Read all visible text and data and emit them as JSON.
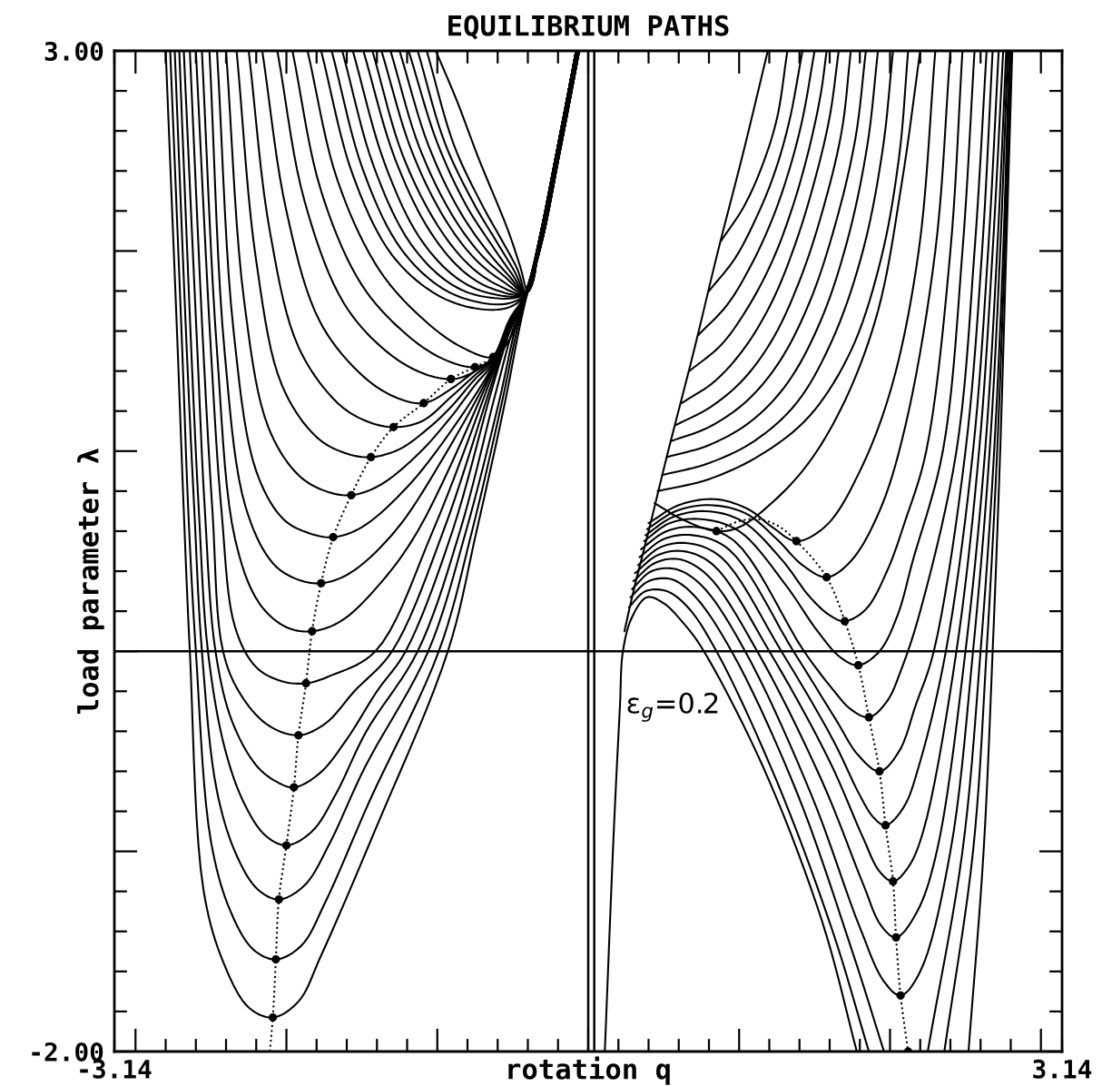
{
  "chart_data": {
    "type": "line",
    "title": "EQUILIBRIUM PATHS",
    "xlabel": "rotation q",
    "ylabel": "load parameter λ",
    "color": "#000000",
    "line_style": "solid",
    "xlim": [
      -3.14,
      3.14
    ],
    "ylim": [
      -2.0,
      3.0
    ],
    "xticks": [
      {
        "value": -3.14,
        "label": "-3.14"
      },
      {
        "value": -3.0,
        "label": null
      },
      {
        "value": -2.8,
        "label": null
      },
      {
        "value": -2.6,
        "label": null
      },
      {
        "value": -2.4,
        "label": null
      },
      {
        "value": -2.2,
        "label": null
      },
      {
        "value": -2.0,
        "label": null
      },
      {
        "value": -1.8,
        "label": null
      },
      {
        "value": -1.6,
        "label": null
      },
      {
        "value": -1.4,
        "label": null
      },
      {
        "value": -1.2,
        "label": null
      },
      {
        "value": -1.0,
        "label": null
      },
      {
        "value": -0.8,
        "label": null
      },
      {
        "value": -0.6,
        "label": null
      },
      {
        "value": -0.4,
        "label": null
      },
      {
        "value": -0.2,
        "label": null
      },
      {
        "value": 0.0,
        "label": null
      },
      {
        "value": 0.2,
        "label": null
      },
      {
        "value": 0.4,
        "label": null
      },
      {
        "value": 0.6,
        "label": null
      },
      {
        "value": 0.8,
        "label": null
      },
      {
        "value": 1.0,
        "label": null
      },
      {
        "value": 1.2,
        "label": null
      },
      {
        "value": 1.4,
        "label": null
      },
      {
        "value": 1.6,
        "label": null
      },
      {
        "value": 1.8,
        "label": null
      },
      {
        "value": 2.0,
        "label": null
      },
      {
        "value": 2.2,
        "label": null
      },
      {
        "value": 2.4,
        "label": null
      },
      {
        "value": 2.6,
        "label": null
      },
      {
        "value": 2.8,
        "label": null
      },
      {
        "value": 3.0,
        "label": null
      },
      {
        "value": 3.14,
        "label": "3.14"
      }
    ],
    "yticks": [
      {
        "value": -2.0,
        "label": "-2.00"
      },
      {
        "value": -1.8,
        "label": null
      },
      {
        "value": -1.6,
        "label": null
      },
      {
        "value": -1.4,
        "label": null
      },
      {
        "value": -1.2,
        "label": null
      },
      {
        "value": -1.0,
        "label": null
      },
      {
        "value": -0.8,
        "label": null
      },
      {
        "value": -0.6,
        "label": null
      },
      {
        "value": -0.4,
        "label": null
      },
      {
        "value": -0.2,
        "label": null
      },
      {
        "value": 0.0,
        "label": null
      },
      {
        "value": 0.2,
        "label": null
      },
      {
        "value": 0.4,
        "label": null
      },
      {
        "value": 0.6,
        "label": null
      },
      {
        "value": 0.8,
        "label": null
      },
      {
        "value": 1.0,
        "label": null
      },
      {
        "value": 1.2,
        "label": null
      },
      {
        "value": 1.4,
        "label": null
      },
      {
        "value": 1.6,
        "label": null
      },
      {
        "value": 1.8,
        "label": null
      },
      {
        "value": 2.0,
        "label": null
      },
      {
        "value": 2.2,
        "label": null
      },
      {
        "value": 2.4,
        "label": null
      },
      {
        "value": 2.6,
        "label": null
      },
      {
        "value": 2.8,
        "label": null
      },
      {
        "value": 3.0,
        "label": "3.00"
      }
    ],
    "ref_lines": [
      {
        "axis": "y",
        "value": 0
      },
      {
        "axis": "x",
        "value": 0
      },
      {
        "axis": "x",
        "value": 0.04
      }
    ],
    "annotations": [
      {
        "text": "ε$_{g}$=0.2",
        "x": 0.25,
        "y": -0.28
      }
    ],
    "series": [
      {
        "x": [
          -2.8,
          -2.72,
          -2.68,
          -2.64,
          -2.55,
          -2.42,
          -2.25,
          -2.09,
          -1.92,
          -1.77,
          -1.41,
          -0.93,
          -0.74,
          -0.55,
          -0.46,
          -0.4,
          -0.3,
          -0.2,
          -0.11,
          -0.06
        ],
        "values": [
          3.0,
          1.5,
          0.7,
          0.0,
          -1.19,
          -1.55,
          -1.78,
          -1.83,
          -1.75,
          -1.52,
          -0.89,
          0.0,
          0.6,
          1.25,
          1.6,
          1.8,
          2.07,
          2.45,
          2.8,
          3.0
        ]
      },
      {
        "x": [
          -2.77,
          -2.69,
          -2.65,
          -2.6,
          -2.5,
          -2.37,
          -2.22,
          -2.07,
          -1.9,
          -1.74,
          -1.45,
          -0.99,
          -0.77,
          -0.57,
          -0.47,
          -0.4,
          -0.3,
          -0.2,
          -0.11,
          -0.06
        ],
        "values": [
          3.0,
          1.5,
          0.7,
          0.0,
          -0.95,
          -1.3,
          -1.49,
          -1.54,
          -1.47,
          -1.25,
          -0.75,
          0.0,
          0.6,
          1.25,
          1.61,
          1.8,
          2.07,
          2.45,
          2.8,
          3.0
        ]
      },
      {
        "x": [
          -2.74,
          -2.66,
          -2.61,
          -2.56,
          -2.46,
          -2.33,
          -2.19,
          -2.05,
          -1.88,
          -1.72,
          -1.48,
          -1.06,
          -0.81,
          -0.59,
          -0.48,
          -0.4,
          -0.3,
          -0.2,
          -0.11,
          -0.06
        ],
        "values": [
          3.0,
          1.5,
          0.7,
          0.0,
          -0.7,
          -1.02,
          -1.19,
          -1.24,
          -1.17,
          -0.97,
          -0.58,
          0.0,
          0.6,
          1.25,
          1.62,
          1.8,
          2.07,
          2.45,
          2.8,
          3.0
        ]
      },
      {
        "x": [
          -2.71,
          -2.63,
          -2.58,
          -2.52,
          -2.41,
          -2.28,
          -2.14,
          -2.0,
          -1.83,
          -1.67,
          -1.47,
          -1.13,
          -0.85,
          -0.61,
          -0.49,
          -0.4,
          -0.3,
          -0.2,
          -0.11,
          -0.06
        ],
        "values": [
          3.0,
          1.5,
          0.7,
          0.0,
          -0.48,
          -0.76,
          -0.92,
          -0.97,
          -0.9,
          -0.71,
          -0.4,
          0.0,
          0.6,
          1.3,
          1.63,
          1.8,
          2.07,
          2.45,
          2.8,
          3.0
        ]
      },
      {
        "x": [
          -2.68,
          -2.59,
          -2.54,
          -2.47,
          -2.36,
          -2.2,
          -2.07,
          -1.95,
          -1.78,
          -1.6,
          -1.4,
          -1.21,
          -0.9,
          -0.63,
          -0.5,
          -0.4,
          -0.3,
          -0.2,
          -0.11,
          -0.06
        ],
        "values": [
          3.0,
          1.5,
          0.7,
          0.0,
          -0.35,
          -0.57,
          -0.65,
          -0.68,
          -0.61,
          -0.44,
          -0.2,
          0.0,
          0.6,
          1.33,
          1.64,
          1.8,
          2.07,
          2.45,
          2.8,
          3.0
        ]
      },
      {
        "x": [
          -2.64,
          -2.55,
          -2.49,
          -2.42,
          -2.3,
          -2.12,
          -1.92,
          -1.74,
          -1.55,
          -1.3,
          -0.96,
          -0.63,
          -0.5,
          -0.4,
          -0.3,
          -0.2,
          -0.11,
          -0.06
        ],
        "values": [
          3.0,
          1.5,
          0.7,
          0.0,
          -0.22,
          -0.37,
          -0.42,
          -0.36,
          -0.2,
          0.0,
          0.6,
          1.36,
          1.65,
          1.8,
          2.07,
          2.45,
          2.8,
          3.0
        ]
      },
      {
        "x": [
          -2.6,
          -2.5,
          -2.43,
          -2.34,
          -2.2,
          -2.03,
          -1.87,
          -1.7,
          -1.41,
          -1.03,
          -0.63,
          -0.52,
          -0.42,
          -0.31,
          -0.21,
          -0.12,
          -0.07
        ],
        "values": [
          3.0,
          1.5,
          0.7,
          0.12,
          -0.08,
          -0.15,
          -0.16,
          -0.12,
          0.0,
          0.6,
          1.39,
          1.6,
          1.78,
          2.07,
          2.45,
          2.8,
          3.0
        ]
      },
      {
        "x": [
          -2.56,
          -2.46,
          -2.34,
          -2.18,
          -2.0,
          -1.83,
          -1.64,
          -1.4,
          -1.13,
          -0.63,
          -0.52,
          -0.42,
          -0.31,
          -0.21,
          -0.12,
          -0.07
        ],
        "values": [
          3.0,
          1.5,
          0.56,
          0.24,
          0.12,
          0.1,
          0.15,
          0.32,
          0.6,
          1.41,
          1.61,
          1.78,
          2.07,
          2.45,
          2.8,
          3.0
        ]
      },
      {
        "x": [
          -2.51,
          -2.41,
          -2.27,
          -2.09,
          -1.93,
          -1.77,
          -1.58,
          -1.28,
          -0.95,
          -0.63,
          -0.52,
          -0.42,
          -0.31,
          -0.21,
          -0.12,
          -0.07
        ],
        "values": [
          3.0,
          1.5,
          0.72,
          0.44,
          0.36,
          0.34,
          0.39,
          0.6,
          0.98,
          1.42,
          1.62,
          1.78,
          2.07,
          2.45,
          2.8,
          3.0
        ]
      },
      {
        "x": [
          -2.46,
          -2.35,
          -2.2,
          -2.02,
          -1.85,
          -1.69,
          -1.5,
          -1.2,
          -0.91,
          -0.63,
          -0.52,
          -0.42,
          -0.31,
          -0.21,
          -0.12,
          -0.07
        ],
        "values": [
          3.0,
          1.6,
          0.9,
          0.66,
          0.59,
          0.57,
          0.62,
          0.82,
          1.1,
          1.43,
          1.62,
          1.78,
          2.07,
          2.45,
          2.8,
          3.0
        ]
      },
      {
        "x": [
          -2.4,
          -2.28,
          -2.12,
          -1.92,
          -1.74,
          -1.57,
          -1.38,
          -1.12,
          -0.91,
          -0.75,
          -0.63,
          -0.52,
          -0.42,
          -0.31,
          -0.21,
          -0.12,
          -0.07
        ],
        "values": [
          3.0,
          1.75,
          1.12,
          0.88,
          0.8,
          0.78,
          0.83,
          0.99,
          1.17,
          1.33,
          1.44,
          1.63,
          1.78,
          2.07,
          2.45,
          2.8,
          3.0
        ]
      },
      {
        "x": [
          -2.33,
          -2.2,
          -2.03,
          -1.8,
          -1.61,
          -1.44,
          -1.25,
          -1.05,
          -0.91,
          -0.75,
          -0.63,
          -0.52,
          -0.42,
          -0.31,
          -0.21,
          -0.12,
          -0.07
        ],
        "values": [
          3.0,
          1.95,
          1.33,
          1.07,
          0.99,
          0.97,
          1.01,
          1.12,
          1.22,
          1.36,
          1.45,
          1.63,
          1.78,
          2.07,
          2.45,
          2.8,
          3.0
        ]
      },
      {
        "x": [
          -2.25,
          -2.11,
          -1.92,
          -1.66,
          -1.47,
          -1.29,
          -1.1,
          -0.91,
          -0.75,
          -0.63,
          -0.52,
          -0.42,
          -0.32,
          -0.22,
          -0.13,
          -0.08
        ],
        "values": [
          3.0,
          2.1,
          1.52,
          1.24,
          1.15,
          1.12,
          1.15,
          1.27,
          1.38,
          1.46,
          1.64,
          1.78,
          2.07,
          2.45,
          2.8,
          3.0
        ]
      },
      {
        "x": [
          -2.16,
          -2.0,
          -1.78,
          -1.5,
          -1.28,
          -1.09,
          -0.91,
          -0.75,
          -0.63,
          -0.52,
          -0.42,
          -0.32,
          -0.22,
          -0.13,
          -0.08
        ],
        "values": [
          3.0,
          2.2,
          1.65,
          1.38,
          1.27,
          1.24,
          1.31,
          1.4,
          1.46,
          1.64,
          1.78,
          2.07,
          2.45,
          2.8,
          3.0
        ]
      },
      {
        "x": [
          -2.06,
          -1.88,
          -1.62,
          -1.34,
          -1.1,
          -0.91,
          -0.8,
          -0.63,
          -0.52,
          -0.42,
          -0.32,
          -0.22,
          -0.13,
          -0.08
        ],
        "values": [
          3.0,
          2.25,
          1.74,
          1.5,
          1.39,
          1.36,
          1.38,
          1.47,
          1.65,
          1.78,
          2.07,
          2.45,
          2.8,
          3.0
        ]
      },
      {
        "x": [
          -1.96,
          -1.77,
          -1.5,
          -1.2,
          -0.96,
          -0.75,
          -0.64,
          -0.52,
          -0.42,
          -0.32,
          -0.22,
          -0.13,
          -0.08
        ],
        "values": [
          3.0,
          2.3,
          1.83,
          1.58,
          1.46,
          1.42,
          1.46,
          1.66,
          1.78,
          2.07,
          2.45,
          2.8,
          3.0
        ]
      },
      {
        "x": [
          -1.86,
          -1.66,
          -1.38,
          -1.08,
          -0.84,
          -0.63,
          -0.52,
          -0.42,
          -0.32,
          -0.22,
          -0.13,
          -0.08
        ],
        "values": [
          3.0,
          2.35,
          1.9,
          1.65,
          1.52,
          1.47,
          1.56,
          1.76,
          2.07,
          2.45,
          2.8,
          3.0
        ]
      },
      {
        "x": [
          -1.77,
          -1.56,
          -1.3,
          -1.0,
          -0.72,
          -0.52,
          -0.41,
          -0.32,
          -0.22,
          -0.13,
          -0.08
        ],
        "values": [
          3.0,
          2.38,
          1.98,
          1.78,
          1.71,
          1.72,
          1.79,
          2.07,
          2.45,
          2.8,
          3.0
        ]
      },
      {
        "x": [
          -1.7,
          -1.49,
          -1.24,
          -0.96,
          -0.7,
          -0.52,
          -0.41,
          -0.32,
          -0.22,
          -0.13,
          -0.08
        ],
        "values": [
          3.0,
          2.4,
          2.01,
          1.81,
          1.74,
          1.74,
          1.79,
          2.07,
          2.45,
          2.8,
          3.0
        ]
      },
      {
        "x": [
          -1.63,
          -1.42,
          -1.18,
          -0.92,
          -0.68,
          -0.41,
          -0.32,
          -0.22,
          -0.13,
          -0.08
        ],
        "values": [
          3.0,
          2.42,
          2.04,
          1.84,
          1.77,
          1.79,
          2.07,
          2.45,
          2.8,
          3.0
        ]
      },
      {
        "x": [
          -1.56,
          -1.35,
          -1.12,
          -0.88,
          -0.66,
          -0.41,
          -0.32,
          -0.22,
          -0.13,
          -0.08
        ],
        "values": [
          3.0,
          2.44,
          2.07,
          1.87,
          1.79,
          1.79,
          2.07,
          2.45,
          2.8,
          3.0
        ]
      },
      {
        "x": [
          -1.49,
          -1.28,
          -1.05,
          -0.83,
          -0.63,
          -0.41,
          -0.32,
          -0.22,
          -0.13,
          -0.08
        ],
        "values": [
          3.0,
          2.46,
          2.1,
          1.9,
          1.81,
          1.79,
          2.07,
          2.45,
          2.8,
          3.0
        ]
      },
      {
        "x": [
          -1.43,
          -1.23,
          -1.0,
          -0.79,
          -0.6,
          -0.41,
          -0.32,
          -0.22,
          -0.13,
          -0.08
        ],
        "values": [
          3.0,
          2.48,
          2.13,
          1.93,
          1.83,
          1.79,
          2.07,
          2.45,
          2.8,
          3.0
        ]
      },
      {
        "x": [
          -1.37,
          -1.17,
          -0.95,
          -0.75,
          -0.57,
          -0.41,
          -0.32,
          -0.22,
          -0.13,
          -0.08
        ],
        "values": [
          3.0,
          2.5,
          2.16,
          1.96,
          1.85,
          1.79,
          2.07,
          2.45,
          2.8,
          3.0
        ]
      },
      {
        "x": [
          -1.31,
          -1.12,
          -0.91,
          -0.72,
          -0.55,
          -0.41,
          -0.32,
          -0.22,
          -0.13,
          -0.08
        ],
        "values": [
          3.0,
          2.52,
          2.19,
          1.99,
          1.87,
          1.79,
          2.07,
          2.45,
          2.8,
          3.0
        ]
      },
      {
        "x": [
          -1.25,
          -1.06,
          -0.86,
          -0.68,
          -0.53,
          -0.41,
          -0.32,
          -0.22,
          -0.13,
          -0.08
        ],
        "values": [
          3.0,
          2.53,
          2.21,
          2.01,
          1.88,
          1.79,
          2.07,
          2.45,
          2.8,
          3.0
        ]
      },
      {
        "x": [
          -1.19,
          -1.0,
          -0.81,
          -0.64,
          -0.51,
          -0.41,
          -0.32,
          -0.22,
          -0.13,
          -0.08
        ],
        "values": [
          3.0,
          2.54,
          2.23,
          2.03,
          1.89,
          1.79,
          2.07,
          2.45,
          2.8,
          3.0
        ]
      },
      {
        "x": [
          -1.13,
          -0.95,
          -0.76,
          -0.61,
          -0.49,
          -0.41,
          -0.32,
          -0.22,
          -0.13,
          -0.08
        ],
        "values": [
          3.0,
          2.54,
          2.24,
          2.05,
          1.9,
          1.79,
          2.07,
          2.45,
          2.8,
          3.0
        ]
      },
      {
        "x": [
          -1.07,
          -0.89,
          -0.71,
          -0.57,
          -0.47,
          -0.41,
          -0.32,
          -0.22,
          -0.13,
          -0.08
        ],
        "values": [
          3.0,
          2.53,
          2.24,
          2.05,
          1.91,
          1.79,
          2.07,
          2.45,
          2.8,
          3.0
        ]
      },
      {
        "x": [
          -1.01,
          -0.87,
          -0.73,
          -0.53,
          -0.45,
          -0.4,
          -0.32,
          -0.22,
          -0.13,
          -0.08
        ],
        "values": [
          3.0,
          2.75,
          2.47,
          2.1,
          1.92,
          1.8,
          2.07,
          2.45,
          2.8,
          3.0
        ]
      },
      {
        "x": [
          0.11,
          0.17,
          0.21,
          0.23,
          0.29,
          0.39,
          0.5,
          0.62,
          0.75,
          1.16,
          1.55,
          1.78
        ],
        "values": [
          -2.0,
          -0.89,
          -0.28,
          0.0,
          0.17,
          0.27,
          0.24,
          0.15,
          0.02,
          -0.58,
          -1.35,
          -2.0
        ]
      },
      {
        "x": [
          2.52,
          2.62,
          2.68,
          2.73,
          2.77,
          2.81
        ],
        "values": [
          -2.0,
          -1.0,
          0.0,
          1.0,
          2.0,
          3.0
        ]
      },
      {
        "x": [
          0.27,
          0.38,
          0.52,
          0.66,
          0.85,
          1.25,
          1.62,
          1.86
        ],
        "values": [
          0.22,
          0.3,
          0.3,
          0.22,
          0.0,
          -0.65,
          -1.4,
          -2.0
        ]
      },
      {
        "x": [
          2.36,
          2.55,
          2.64,
          2.71,
          2.76,
          2.8
        ],
        "values": [
          -2.0,
          -1.0,
          0.0,
          1.0,
          2.0,
          3.0
        ]
      },
      {
        "x": [
          0.28,
          0.4,
          0.55,
          0.7,
          0.95,
          1.38,
          1.75,
          1.96
        ],
        "values": [
          0.27,
          0.35,
          0.36,
          0.28,
          0.0,
          -0.7,
          -1.5,
          -2.0
        ]
      },
      {
        "x": [
          2.25,
          2.48,
          2.6,
          2.69,
          2.75,
          2.79
        ],
        "values": [
          -2.0,
          -1.0,
          0.0,
          1.0,
          2.0,
          3.0
        ]
      },
      {
        "x": [
          0.29,
          0.42,
          0.58,
          0.75,
          1.04,
          1.48,
          1.8,
          1.96,
          2.07,
          2.2,
          2.4,
          2.55,
          2.66,
          2.73,
          2.78
        ],
        "values": [
          0.31,
          0.4,
          0.41,
          0.33,
          0.0,
          -0.72,
          -1.38,
          -1.65,
          -1.72,
          -1.6,
          -1.0,
          0.0,
          1.0,
          2.0,
          3.0
        ]
      },
      {
        "x": [
          0.3,
          0.44,
          0.6,
          0.79,
          1.12,
          1.55,
          1.82,
          1.94,
          2.04,
          2.18,
          2.31,
          2.5,
          2.63,
          2.71,
          2.77
        ],
        "values": [
          0.35,
          0.44,
          0.46,
          0.38,
          0.0,
          -0.65,
          -1.16,
          -1.37,
          -1.43,
          -1.3,
          -1.0,
          0.0,
          1.0,
          2.0,
          3.0
        ]
      },
      {
        "x": [
          0.31,
          0.46,
          0.63,
          0.83,
          1.2,
          1.6,
          1.82,
          1.93,
          2.02,
          2.12,
          2.22,
          2.44,
          2.59,
          2.68,
          2.75
        ],
        "values": [
          0.39,
          0.48,
          0.5,
          0.43,
          0.0,
          -0.55,
          -0.93,
          -1.1,
          -1.15,
          -1.08,
          -0.9,
          0.0,
          1.0,
          2.0,
          3.0
        ]
      },
      {
        "x": [
          0.33,
          0.48,
          0.66,
          0.88,
          1.28,
          1.62,
          1.8,
          1.89,
          1.97,
          2.09,
          2.2,
          2.37,
          2.55,
          2.65,
          2.72
        ],
        "values": [
          0.43,
          0.52,
          0.54,
          0.47,
          0.0,
          -0.44,
          -0.72,
          -0.83,
          -0.87,
          -0.78,
          -0.55,
          0.0,
          1.0,
          2.0,
          3.0
        ]
      },
      {
        "x": [
          0.34,
          0.5,
          0.69,
          0.93,
          1.36,
          1.64,
          1.79,
          1.93,
          2.06,
          2.17,
          2.29,
          2.5,
          2.61,
          2.68
        ],
        "values": [
          0.47,
          0.56,
          0.58,
          0.51,
          0.0,
          -0.34,
          -0.52,
          -0.6,
          -0.5,
          -0.27,
          0.0,
          1.0,
          2.0,
          3.0
        ]
      },
      {
        "x": [
          0.35,
          0.52,
          0.72,
          0.97,
          1.43,
          1.62,
          1.74,
          1.86,
          1.98,
          2.08,
          2.2,
          2.44,
          2.56,
          2.64
        ],
        "values": [
          0.51,
          0.6,
          0.62,
          0.55,
          0.0,
          -0.19,
          -0.29,
          -0.33,
          -0.25,
          -0.08,
          0.2,
          1.0,
          2.0,
          3.0
        ]
      },
      {
        "x": [
          0.37,
          0.54,
          0.75,
          1.0,
          1.3,
          1.52,
          1.67,
          1.79,
          1.93,
          2.05,
          2.15,
          2.35,
          2.48,
          2.56
        ],
        "values": [
          0.55,
          0.64,
          0.66,
          0.6,
          0.34,
          0.1,
          -0.03,
          -0.07,
          0.0,
          0.18,
          0.45,
          1.0,
          2.0,
          3.0
        ]
      },
      {
        "x": [
          0.38,
          0.56,
          0.78,
          1.02,
          1.28,
          1.47,
          1.6,
          1.7,
          1.84,
          1.98,
          2.1,
          2.24,
          2.4,
          2.48
        ],
        "values": [
          0.58,
          0.67,
          0.7,
          0.65,
          0.46,
          0.27,
          0.18,
          0.15,
          0.21,
          0.4,
          0.65,
          1.0,
          2.0,
          3.0
        ]
      },
      {
        "x": [
          0.39,
          0.58,
          0.8,
          1.04,
          1.25,
          1.42,
          1.58,
          1.74,
          1.93,
          2.1,
          2.3,
          2.4
        ],
        "values": [
          0.61,
          0.7,
          0.73,
          0.69,
          0.56,
          0.43,
          0.37,
          0.45,
          0.7,
          1.12,
          2.0,
          3.0
        ]
      },
      {
        "x": [
          0.4,
          0.6,
          0.84,
          1.06,
          1.22,
          1.38,
          1.58,
          1.8,
          2.01,
          2.19,
          2.3
        ],
        "values": [
          0.64,
          0.73,
          0.76,
          0.71,
          0.62,
          0.55,
          0.63,
          0.9,
          1.32,
          2.0,
          3.0
        ]
      },
      {
        "x": [
          0.44,
          0.62,
          0.85,
          1.0,
          1.2,
          1.45,
          1.7,
          1.92,
          2.08,
          2.2
        ],
        "values": [
          0.74,
          0.66,
          0.6,
          0.62,
          0.73,
          0.93,
          1.25,
          1.7,
          2.35,
          3.0
        ]
      },
      {
        "x": [
          0.46,
          0.8,
          1.14,
          1.46,
          1.74,
          1.94,
          2.06,
          2.12
        ],
        "values": [
          0.8,
          0.86,
          0.98,
          1.17,
          1.5,
          1.96,
          2.47,
          3.0
        ]
      },
      {
        "x": [
          0.49,
          0.8,
          1.1,
          1.38,
          1.62,
          1.82,
          1.95,
          2.02
        ],
        "values": [
          0.88,
          0.94,
          1.05,
          1.24,
          1.56,
          2.0,
          2.5,
          3.0
        ]
      },
      {
        "x": [
          0.52,
          0.8,
          1.08,
          1.32,
          1.54,
          1.72,
          1.85,
          1.92
        ],
        "values": [
          0.97,
          1.03,
          1.15,
          1.34,
          1.65,
          2.06,
          2.53,
          3.0
        ]
      },
      {
        "x": [
          0.55,
          0.8,
          1.05,
          1.27,
          1.47,
          1.64,
          1.77,
          1.84
        ],
        "values": [
          1.05,
          1.12,
          1.25,
          1.45,
          1.75,
          2.14,
          2.56,
          3.0
        ]
      },
      {
        "x": [
          0.58,
          0.81,
          1.03,
          1.23,
          1.41,
          1.56,
          1.68,
          1.74
        ],
        "values": [
          1.13,
          1.22,
          1.36,
          1.57,
          1.87,
          2.22,
          2.6,
          3.0
        ]
      },
      {
        "x": [
          0.62,
          0.84,
          1.04,
          1.22,
          1.37,
          1.5,
          1.6,
          1.66
        ],
        "values": [
          1.24,
          1.35,
          1.52,
          1.75,
          2.03,
          2.35,
          2.67,
          3.0
        ]
      },
      {
        "x": [
          0.67,
          0.88,
          1.06,
          1.22,
          1.35,
          1.46,
          1.54,
          1.58
        ],
        "values": [
          1.4,
          1.53,
          1.72,
          1.95,
          2.21,
          2.5,
          2.78,
          3.0
        ]
      },
      {
        "x": [
          0.73,
          0.92,
          1.08,
          1.22,
          1.33,
          1.42,
          1.5
        ],
        "values": [
          1.58,
          1.73,
          1.93,
          2.16,
          2.4,
          2.66,
          3.0
        ]
      },
      {
        "x": [
          0.8,
          0.97,
          1.11,
          1.23,
          1.33,
          1.42
        ],
        "values": [
          1.8,
          1.96,
          2.16,
          2.38,
          2.64,
          3.0
        ]
      },
      {
        "x": [
          0.88,
          1.03,
          1.15,
          1.25,
          1.32
        ],
        "values": [
          2.05,
          2.22,
          2.42,
          2.66,
          3.0
        ]
      },
      {
        "x": [
          0.24,
          0.3,
          0.4,
          0.53,
          0.7,
          0.86,
          1.03,
          1.19
        ],
        "values": [
          0.1,
          0.3,
          0.6,
          1.0,
          1.5,
          2.0,
          2.5,
          3.0
        ]
      },
      {
        "line_style": "dotted",
        "x": [
          -2.11,
          -2.09,
          -2.07,
          -2.05,
          -2.0,
          -1.95,
          -1.92,
          -1.87,
          -1.83,
          -1.77,
          -1.69,
          -1.57,
          -1.44,
          -1.29,
          -1.09,
          -0.91,
          -0.75,
          -0.63,
          -0.53
        ],
        "values": [
          -2.0,
          -1.83,
          -1.54,
          -1.24,
          -0.97,
          -0.68,
          -0.42,
          -0.16,
          0.1,
          0.34,
          0.57,
          0.78,
          0.97,
          1.12,
          1.24,
          1.36,
          1.42,
          1.47,
          1.56
        ]
      },
      {
        "line_style": "dotted",
        "x": [
          0.85,
          1.0,
          1.12,
          1.25,
          1.38,
          1.58,
          1.7,
          1.79,
          1.86,
          1.93,
          1.97,
          2.02,
          2.04,
          2.07,
          2.12
        ],
        "values": [
          0.6,
          0.65,
          0.66,
          0.63,
          0.55,
          0.37,
          0.15,
          -0.07,
          -0.33,
          -0.6,
          -0.87,
          -1.15,
          -1.43,
          -1.72,
          -2.0
        ]
      },
      {
        "type": "scatter",
        "marker": "circle",
        "x": [
          -2.09,
          -2.07,
          -2.05,
          -2.0,
          -1.95,
          -1.92,
          -1.87,
          -1.83,
          -1.77,
          -1.69,
          -1.57,
          -1.44,
          -1.29,
          -1.09,
          -0.91,
          -0.75,
          -0.63
        ],
        "values": [
          -1.83,
          -1.54,
          -1.24,
          -0.97,
          -0.68,
          -0.42,
          -0.16,
          0.1,
          0.34,
          0.57,
          0.78,
          0.97,
          1.12,
          1.24,
          1.36,
          1.42,
          1.47
        ]
      },
      {
        "type": "scatter",
        "marker": "circle",
        "x": [
          0.85,
          1.38,
          1.58,
          1.7,
          1.79,
          1.86,
          1.93,
          1.97,
          2.02,
          2.04,
          2.07,
          2.12
        ],
        "values": [
          0.6,
          0.55,
          0.37,
          0.15,
          -0.07,
          -0.33,
          -0.6,
          -0.87,
          -1.15,
          -1.43,
          -1.72,
          -2.0
        ]
      }
    ]
  }
}
